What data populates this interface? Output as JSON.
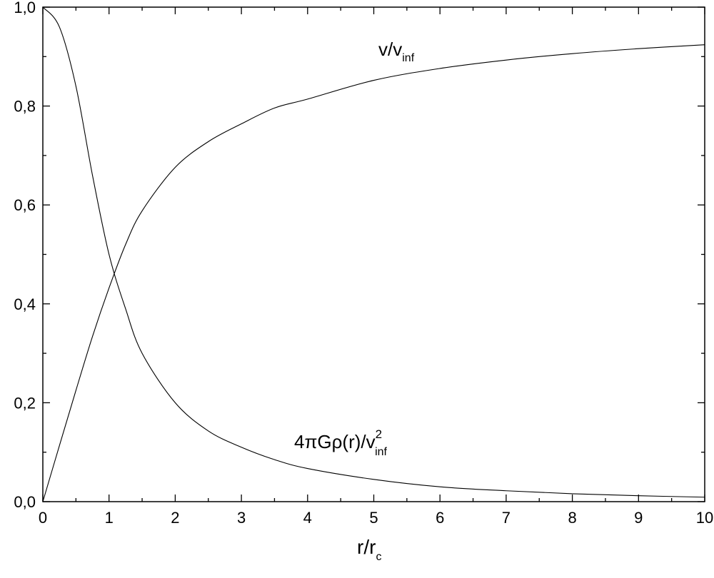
{
  "chart_data": {
    "type": "line",
    "title": "",
    "xlabel": {
      "main": "r/r",
      "sub": "c"
    },
    "ylabel": "",
    "xlim": [
      0,
      10
    ],
    "ylim": [
      0,
      1.0
    ],
    "x_ticks": [
      "0",
      "1",
      "2",
      "3",
      "4",
      "5",
      "6",
      "7",
      "8",
      "9",
      "10"
    ],
    "y_ticks": [
      "0,0",
      "0,2",
      "0,4",
      "0,6",
      "0,8",
      "1,0"
    ],
    "grid": false,
    "series": [
      {
        "label": {
          "main": "v/v",
          "sub": "inf"
        },
        "x": [
          0,
          0.25,
          0.5,
          0.75,
          1,
          1.25,
          1.5,
          2,
          2.5,
          3,
          3.5,
          4,
          5,
          6,
          7,
          8,
          9,
          10
        ],
        "y": [
          0,
          0.113,
          0.225,
          0.334,
          0.432,
          0.52,
          0.588,
          0.676,
          0.728,
          0.764,
          0.796,
          0.814,
          0.852,
          0.876,
          0.893,
          0.906,
          0.916,
          0.924
        ]
      },
      {
        "label": {
          "main": "4πGρ(r)/v",
          "sup": "2",
          "sub": "inf"
        },
        "x": [
          0,
          0.25,
          0.5,
          0.75,
          1,
          1.25,
          1.5,
          2,
          2.5,
          3,
          3.5,
          4,
          5,
          6,
          7,
          8,
          9,
          10
        ],
        "y": [
          1.0,
          0.96,
          0.84,
          0.66,
          0.5,
          0.39,
          0.3,
          0.2,
          0.143,
          0.11,
          0.085,
          0.067,
          0.045,
          0.03,
          0.022,
          0.016,
          0.012,
          0.009
        ]
      }
    ]
  }
}
